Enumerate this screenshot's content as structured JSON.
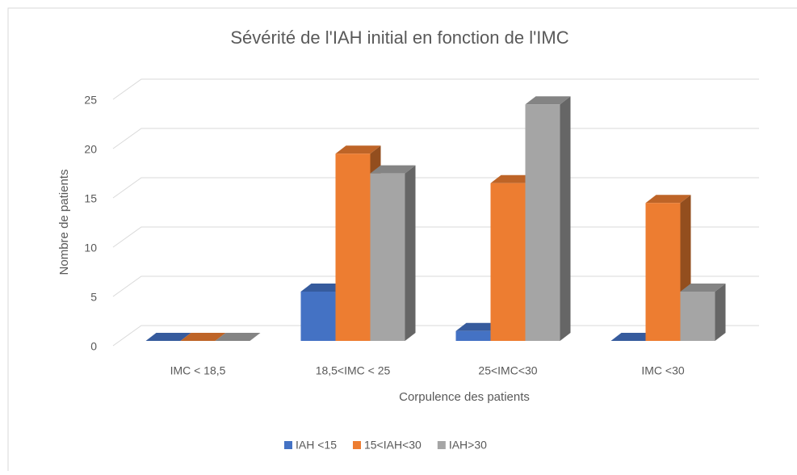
{
  "chart_data": {
    "type": "bar3d",
    "title": "Sévérité de l'IAH initial en fonction de l'IMC",
    "x_label": "Corpulence des patients",
    "y_label": "Nombre de patients",
    "categories": [
      "IMC < 18,5",
      "18,5<IMC < 25",
      "25<IMC<30",
      "IMC <30"
    ],
    "series": [
      {
        "name": "IAH <15",
        "color": "#4472c4",
        "values": [
          0,
          5,
          1,
          0
        ]
      },
      {
        "name": "15<IAH<30",
        "color": "#ed7d31",
        "values": [
          0,
          19,
          16,
          14
        ]
      },
      {
        "name": "IAH>30",
        "color": "#a5a5a5",
        "values": [
          0,
          17,
          24,
          5
        ]
      }
    ],
    "ylim": [
      0,
      25
    ],
    "yticks": [
      0,
      5,
      10,
      15,
      20,
      25
    ],
    "grid": true,
    "legend": "bottom"
  }
}
